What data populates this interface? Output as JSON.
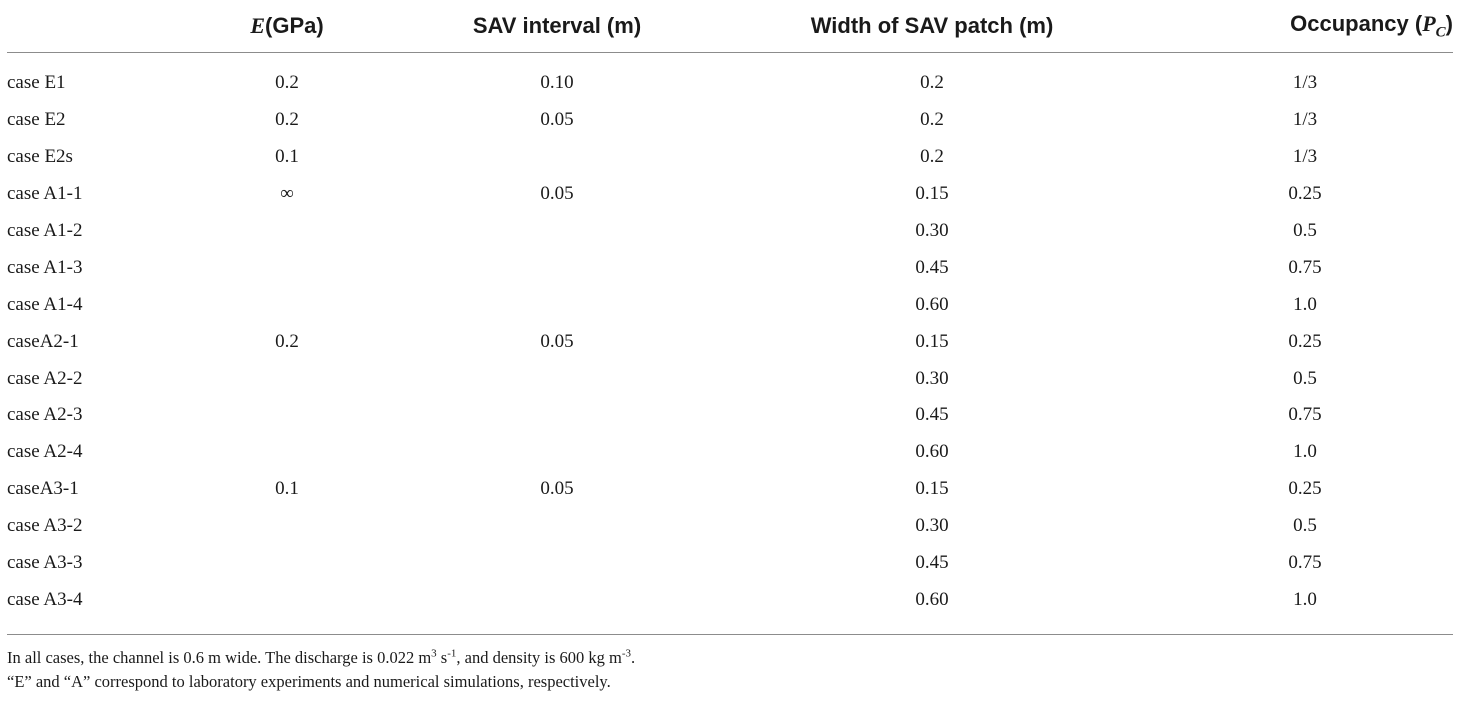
{
  "table": {
    "headers": [
      {
        "label": "",
        "var": "",
        "text": "",
        "sub": "",
        "close": ""
      },
      {
        "label": "",
        "var": "E",
        "text": "(GPa)",
        "sub": "",
        "close": ""
      },
      {
        "label": "SAV interval (m)",
        "var": "",
        "text": "",
        "sub": "",
        "close": ""
      },
      {
        "label": "Width of SAV patch (m)",
        "var": "",
        "text": "",
        "sub": "",
        "close": ""
      },
      {
        "label": "Occupancy (",
        "var": "P",
        "text": "",
        "sub": "C",
        "close": ")"
      }
    ],
    "rows": [
      {
        "case": "case E1",
        "e": "0.2",
        "interval": "0.10",
        "width": "0.2",
        "occupancy": "1/3"
      },
      {
        "case": "case E2",
        "e": "0.2",
        "interval": "0.05",
        "width": "0.2",
        "occupancy": "1/3"
      },
      {
        "case": "case E2s",
        "e": "0.1",
        "interval": "",
        "width": "0.2",
        "occupancy": "1/3"
      },
      {
        "case": "case A1-1",
        "e": "∞",
        "interval": "0.05",
        "width": "0.15",
        "occupancy": "0.25"
      },
      {
        "case": "case A1-2",
        "e": "",
        "interval": "",
        "width": "0.30",
        "occupancy": "0.5"
      },
      {
        "case": "case A1-3",
        "e": "",
        "interval": "",
        "width": "0.45",
        "occupancy": "0.75"
      },
      {
        "case": "case A1-4",
        "e": "",
        "interval": "",
        "width": "0.60",
        "occupancy": "1.0"
      },
      {
        "case": "caseA2-1",
        "e": "0.2",
        "interval": "0.05",
        "width": "0.15",
        "occupancy": "0.25"
      },
      {
        "case": "case A2-2",
        "e": "",
        "interval": "",
        "width": "0.30",
        "occupancy": "0.5"
      },
      {
        "case": "case A2-3",
        "e": "",
        "interval": "",
        "width": "0.45",
        "occupancy": "0.75"
      },
      {
        "case": "case A2-4",
        "e": "",
        "interval": "",
        "width": "0.60",
        "occupancy": "1.0"
      },
      {
        "case": "caseA3-1",
        "e": "0.1",
        "interval": "0.05",
        "width": "0.15",
        "occupancy": "0.25"
      },
      {
        "case": "case A3-2",
        "e": "",
        "interval": "",
        "width": "0.30",
        "occupancy": "0.5"
      },
      {
        "case": "case A3-3",
        "e": "",
        "interval": "",
        "width": "0.45",
        "occupancy": "0.75"
      },
      {
        "case": "case A3-4",
        "e": "",
        "interval": "",
        "width": "0.60",
        "occupancy": "1.0"
      }
    ]
  },
  "notes": {
    "line1": {
      "p1": "In all cases, the channel is 0.6 m wide. The discharge is 0.022 m",
      "s1": "3",
      "p2": " s",
      "s2": "-1",
      "p3": ", and density is 600 kg m",
      "s3": "-3",
      "p4": "."
    },
    "line2": "“E” and “A” correspond to laboratory experiments and numerical simulations, respectively."
  }
}
